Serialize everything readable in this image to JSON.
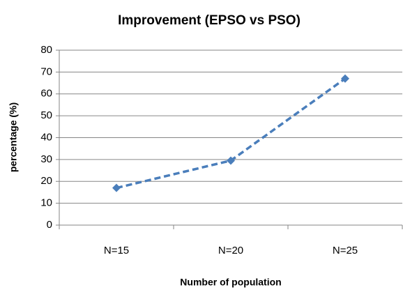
{
  "chart_data": {
    "type": "line",
    "title": "Improvement (EPSO vs PSO)",
    "x_label": "Number of population",
    "y_label": "percentage (%)",
    "categories": [
      "N=15",
      "N=20",
      "N=25"
    ],
    "series": [
      {
        "name": "Improvement",
        "color": "#4a7ebb",
        "values": [
          17,
          29.5,
          67
        ]
      }
    ],
    "ylim": [
      0,
      80
    ],
    "yticks": [
      0,
      10,
      20,
      30,
      40,
      50,
      60,
      70,
      80
    ],
    "grid": true
  }
}
